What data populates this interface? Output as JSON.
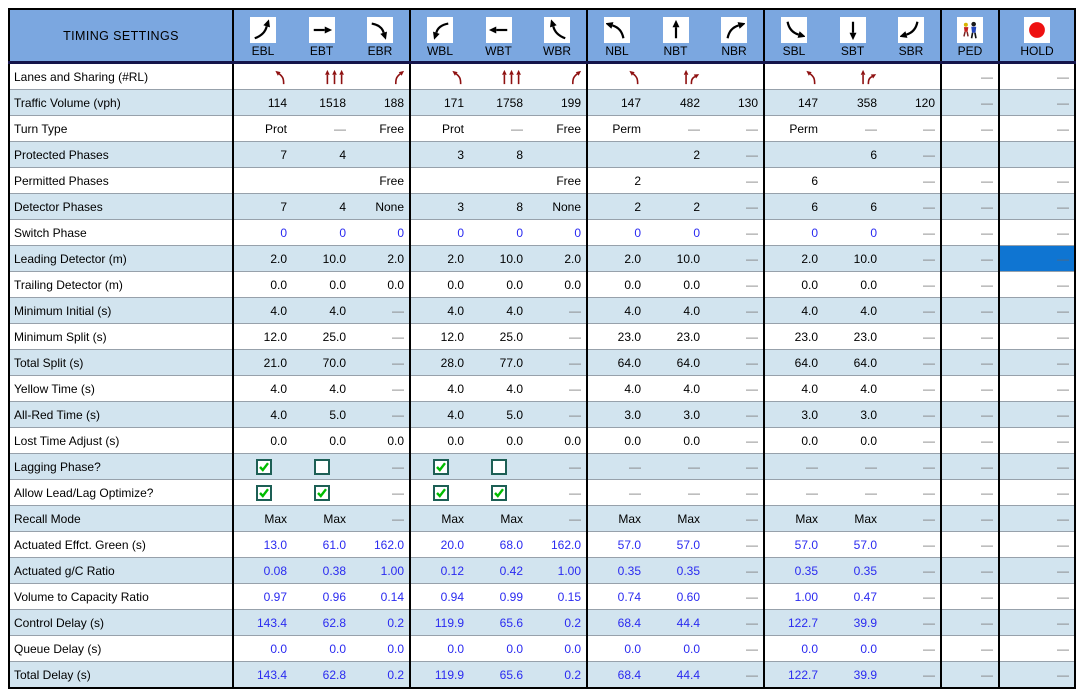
{
  "header": {
    "title": "TIMING SETTINGS"
  },
  "colors": {
    "header_blue": "#7ba7e0",
    "stripe_blue": "#d2e4ef",
    "selected_cell_blue": "#0f75d2",
    "value_blue_text": "#2a2af0",
    "lane_arrow_red": "#8e1010",
    "hold_circle_red": "#ee1010",
    "check_green": "#00bd00",
    "grid_gray": "#97a1ab"
  },
  "columns": [
    {
      "id": "EBL",
      "label": "EBL",
      "icon": "ebl-turn-icon",
      "group_start": true
    },
    {
      "id": "EBT",
      "label": "EBT",
      "icon": "ebt-arrow-icon",
      "group_start": false
    },
    {
      "id": "EBR",
      "label": "EBR",
      "icon": "ebr-turn-icon",
      "group_start": false
    },
    {
      "id": "WBL",
      "label": "WBL",
      "icon": "wbl-turn-icon",
      "group_start": true
    },
    {
      "id": "WBT",
      "label": "WBT",
      "icon": "wbt-arrow-icon",
      "group_start": false
    },
    {
      "id": "WBR",
      "label": "WBR",
      "icon": "wbr-turn-icon",
      "group_start": false
    },
    {
      "id": "NBL",
      "label": "NBL",
      "icon": "nbl-turn-icon",
      "group_start": true
    },
    {
      "id": "NBT",
      "label": "NBT",
      "icon": "nbt-arrow-icon",
      "group_start": false
    },
    {
      "id": "NBR",
      "label": "NBR",
      "icon": "nbr-turn-icon",
      "group_start": false
    },
    {
      "id": "SBL",
      "label": "SBL",
      "icon": "sbl-turn-icon",
      "group_start": true
    },
    {
      "id": "SBT",
      "label": "SBT",
      "icon": "sbt-arrow-icon",
      "group_start": false
    },
    {
      "id": "SBR",
      "label": "SBR",
      "icon": "sbr-turn-icon",
      "group_start": false
    },
    {
      "id": "PED",
      "label": "PED",
      "icon": "pedestrians-icon",
      "group_start": true
    },
    {
      "id": "HOLD",
      "label": "HOLD",
      "icon": "hold-red-circle-icon",
      "group_start": true
    }
  ],
  "rows": [
    {
      "label": "Lanes and Sharing (#RL)",
      "blue": false,
      "cells": [
        "lane:left",
        "lane:through3",
        "lane:right",
        "lane:left",
        "lane:through3",
        "lane:right",
        "lane:left",
        "lane:through-right",
        "",
        "lane:left",
        "lane:through-right",
        "",
        "—",
        "—"
      ]
    },
    {
      "label": "Traffic Volume (vph)",
      "blue": false,
      "cells": [
        "114",
        "1518",
        "188",
        "171",
        "1758",
        "199",
        "147",
        "482",
        "130",
        "147",
        "358",
        "120",
        "—",
        "—"
      ]
    },
    {
      "label": "Turn Type",
      "blue": false,
      "cells": [
        "Prot",
        "—",
        "Free",
        "Prot",
        "—",
        "Free",
        "Perm",
        "—",
        "—",
        "Perm",
        "—",
        "—",
        "—",
        "—"
      ]
    },
    {
      "label": "Protected Phases",
      "blue": false,
      "cells": [
        "7",
        "4",
        "",
        "3",
        "8",
        "",
        "",
        "2",
        "—",
        "",
        "6",
        "—",
        "",
        ""
      ]
    },
    {
      "label": "Permitted Phases",
      "blue": false,
      "cells": [
        "",
        "",
        "Free",
        "",
        "",
        "Free",
        "2",
        "",
        "—",
        "6",
        "",
        "—",
        "—",
        "—"
      ]
    },
    {
      "label": "Detector Phases",
      "blue": false,
      "cells": [
        "7",
        "4",
        "None",
        "3",
        "8",
        "None",
        "2",
        "2",
        "—",
        "6",
        "6",
        "—",
        "—",
        "—"
      ]
    },
    {
      "label": "Switch Phase",
      "blue": true,
      "cells": [
        "0",
        "0",
        "0",
        "0",
        "0",
        "0",
        "0",
        "0",
        "—",
        "0",
        "0",
        "—",
        "—",
        "—"
      ]
    },
    {
      "label": "Leading Detector (m)",
      "blue": false,
      "cells": [
        "2.0",
        "10.0",
        "2.0",
        "2.0",
        "10.0",
        "2.0",
        "2.0",
        "10.0",
        "—",
        "2.0",
        "10.0",
        "—",
        "—",
        "—"
      ]
    },
    {
      "label": "Trailing Detector (m)",
      "blue": false,
      "cells": [
        "0.0",
        "0.0",
        "0.0",
        "0.0",
        "0.0",
        "0.0",
        "0.0",
        "0.0",
        "—",
        "0.0",
        "0.0",
        "—",
        "—",
        "—"
      ]
    },
    {
      "label": "Minimum Initial (s)",
      "blue": false,
      "cells": [
        "4.0",
        "4.0",
        "—",
        "4.0",
        "4.0",
        "—",
        "4.0",
        "4.0",
        "—",
        "4.0",
        "4.0",
        "—",
        "—",
        "—"
      ]
    },
    {
      "label": "Minimum Split (s)",
      "blue": false,
      "cells": [
        "12.0",
        "25.0",
        "—",
        "12.0",
        "25.0",
        "—",
        "23.0",
        "23.0",
        "—",
        "23.0",
        "23.0",
        "—",
        "—",
        "—"
      ]
    },
    {
      "label": "Total Split (s)",
      "blue": false,
      "cells": [
        "21.0",
        "70.0",
        "—",
        "28.0",
        "77.0",
        "—",
        "64.0",
        "64.0",
        "—",
        "64.0",
        "64.0",
        "—",
        "—",
        "—"
      ]
    },
    {
      "label": "Yellow Time (s)",
      "blue": false,
      "cells": [
        "4.0",
        "4.0",
        "—",
        "4.0",
        "4.0",
        "—",
        "4.0",
        "4.0",
        "—",
        "4.0",
        "4.0",
        "—",
        "—",
        "—"
      ]
    },
    {
      "label": "All-Red Time (s)",
      "blue": false,
      "cells": [
        "4.0",
        "5.0",
        "—",
        "4.0",
        "5.0",
        "—",
        "3.0",
        "3.0",
        "—",
        "3.0",
        "3.0",
        "—",
        "—",
        "—"
      ]
    },
    {
      "label": "Lost Time Adjust (s)",
      "blue": false,
      "cells": [
        "0.0",
        "0.0",
        "0.0",
        "0.0",
        "0.0",
        "0.0",
        "0.0",
        "0.0",
        "—",
        "0.0",
        "0.0",
        "—",
        "—",
        "—"
      ]
    },
    {
      "label": "Lagging Phase?",
      "blue": false,
      "cells": [
        "chk:on",
        "chk:off",
        "—",
        "chk:on",
        "chk:off",
        "—",
        "—",
        "—",
        "—",
        "—",
        "—",
        "—",
        "—",
        "—"
      ]
    },
    {
      "label": "Allow Lead/Lag Optimize?",
      "blue": false,
      "cells": [
        "chk:on",
        "chk:on",
        "—",
        "chk:on",
        "chk:on",
        "—",
        "—",
        "—",
        "—",
        "—",
        "—",
        "—",
        "—",
        "—"
      ]
    },
    {
      "label": "Recall Mode",
      "blue": false,
      "cells": [
        "Max",
        "Max",
        "—",
        "Max",
        "Max",
        "—",
        "Max",
        "Max",
        "—",
        "Max",
        "Max",
        "—",
        "—",
        "—"
      ]
    },
    {
      "label": "Actuated Effct. Green (s)",
      "blue": true,
      "cells": [
        "13.0",
        "61.0",
        "162.0",
        "20.0",
        "68.0",
        "162.0",
        "57.0",
        "57.0",
        "—",
        "57.0",
        "57.0",
        "—",
        "—",
        "—"
      ]
    },
    {
      "label": "Actuated g/C Ratio",
      "blue": true,
      "cells": [
        "0.08",
        "0.38",
        "1.00",
        "0.12",
        "0.42",
        "1.00",
        "0.35",
        "0.35",
        "—",
        "0.35",
        "0.35",
        "—",
        "—",
        "—"
      ]
    },
    {
      "label": "Volume to Capacity Ratio",
      "blue": true,
      "cells": [
        "0.97",
        "0.96",
        "0.14",
        "0.94",
        "0.99",
        "0.15",
        "0.74",
        "0.60",
        "—",
        "1.00",
        "0.47",
        "—",
        "—",
        "—"
      ]
    },
    {
      "label": "Control Delay (s)",
      "blue": true,
      "cells": [
        "143.4",
        "62.8",
        "0.2",
        "119.9",
        "65.6",
        "0.2",
        "68.4",
        "44.4",
        "—",
        "122.7",
        "39.9",
        "—",
        "—",
        "—"
      ]
    },
    {
      "label": "Queue Delay (s)",
      "blue": true,
      "cells": [
        "0.0",
        "0.0",
        "0.0",
        "0.0",
        "0.0",
        "0.0",
        "0.0",
        "0.0",
        "—",
        "0.0",
        "0.0",
        "—",
        "—",
        "—"
      ]
    },
    {
      "label": "Total Delay (s)",
      "blue": true,
      "cells": [
        "143.4",
        "62.8",
        "0.2",
        "119.9",
        "65.6",
        "0.2",
        "68.4",
        "44.4",
        "—",
        "122.7",
        "39.9",
        "—",
        "—",
        "—"
      ]
    }
  ],
  "selected_cell": {
    "row_index": 7,
    "col_index": 13,
    "row_label": "Leading Detector (m)",
    "column": "HOLD",
    "value": "—"
  }
}
